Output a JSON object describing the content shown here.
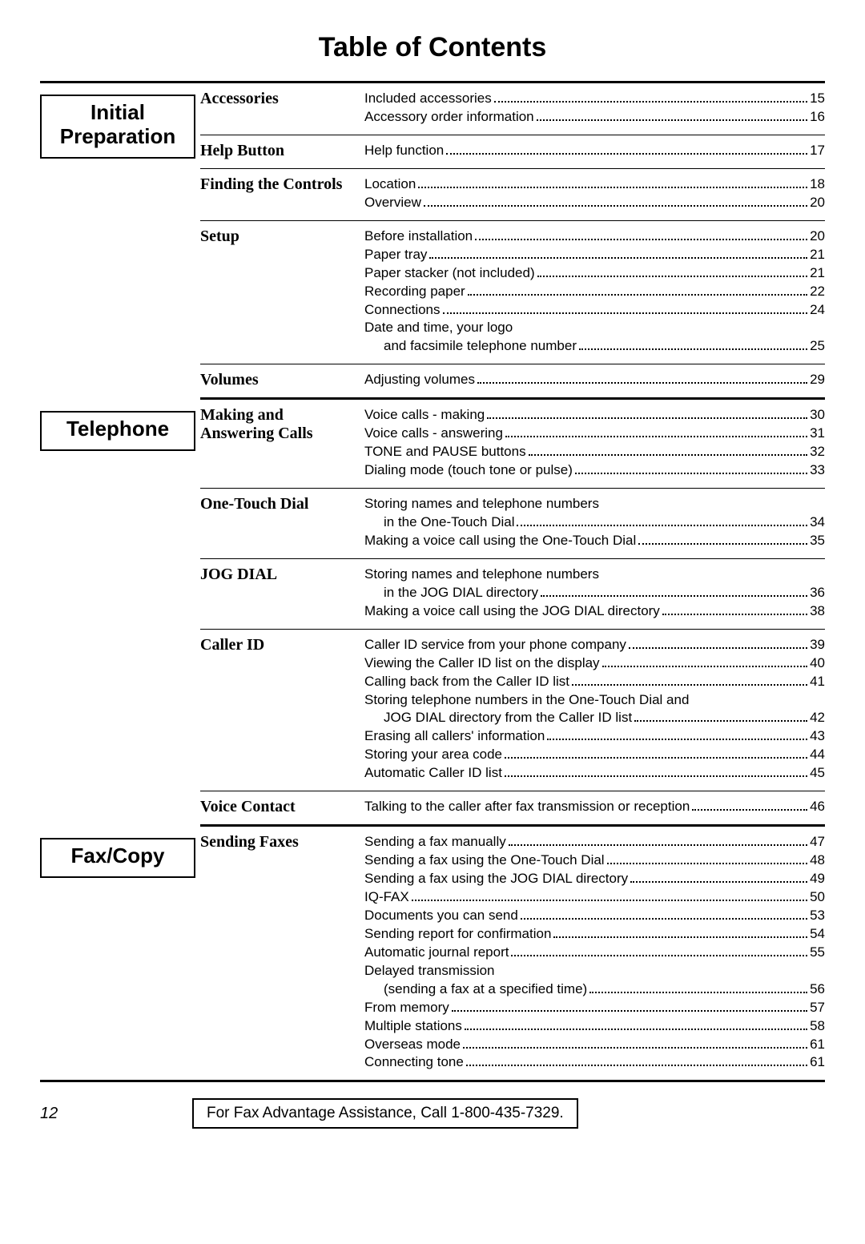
{
  "title": "Table of Contents",
  "page_number": "12",
  "footer": "For Fax Advantage Assistance, Call 1-800-435-7329.",
  "groups": [
    {
      "category": "Initial\nPreparation",
      "subsections": [
        {
          "heading": "Accessories",
          "entries": [
            {
              "label": "Included accessories",
              "page": "15"
            },
            {
              "label": "Accessory order information",
              "page": "16"
            }
          ]
        },
        {
          "heading": "Help Button",
          "entries": [
            {
              "label": "Help function",
              "page": "17"
            }
          ]
        },
        {
          "heading": "Finding the Controls",
          "entries": [
            {
              "label": "Location",
              "page": "18"
            },
            {
              "label": "Overview",
              "page": "20"
            }
          ]
        },
        {
          "heading": "Setup",
          "entries": [
            {
              "label": "Before installation",
              "page": "20"
            },
            {
              "label": "Paper tray",
              "page": "21"
            },
            {
              "label": "Paper stacker (not included)",
              "page": "21"
            },
            {
              "label": "Recording paper",
              "page": "22"
            },
            {
              "label": "Connections",
              "page": "24"
            },
            {
              "label": "Date and time, your logo",
              "intro": true
            },
            {
              "label": "and facsimile telephone number",
              "page": "25",
              "indent": true
            }
          ]
        },
        {
          "heading": "Volumes",
          "entries": [
            {
              "label": "Adjusting volumes",
              "page": "29"
            }
          ]
        }
      ]
    },
    {
      "category": "Telephone",
      "subsections": [
        {
          "heading": "Making and Answering Calls",
          "entries": [
            {
              "label": "Voice calls - making",
              "page": "30"
            },
            {
              "label": "Voice calls - answering",
              "page": "31"
            },
            {
              "label": "TONE and PAUSE buttons",
              "page": "32"
            },
            {
              "label": "Dialing mode (touch tone or pulse)",
              "page": "33"
            }
          ]
        },
        {
          "heading": "One-Touch Dial",
          "entries": [
            {
              "label": "Storing names and telephone numbers",
              "intro": true
            },
            {
              "label": "in the One-Touch Dial",
              "page": "34",
              "indent": true
            },
            {
              "label": "Making a voice call using the One-Touch Dial",
              "page": "35"
            }
          ]
        },
        {
          "heading": "JOG DIAL",
          "entries": [
            {
              "label": "Storing names and telephone numbers",
              "intro": true
            },
            {
              "label": "in the JOG DIAL directory",
              "page": "36",
              "indent": true
            },
            {
              "label": "Making a voice call using the JOG DIAL directory",
              "page": "38"
            }
          ]
        },
        {
          "heading": "Caller ID",
          "entries": [
            {
              "label": "Caller ID service from your phone company",
              "page": "39"
            },
            {
              "label": "Viewing the Caller ID list on the display",
              "page": "40"
            },
            {
              "label": "Calling back from the Caller ID list",
              "page": "41"
            },
            {
              "label": "Storing telephone numbers in the One-Touch Dial and",
              "intro": true
            },
            {
              "label": "JOG DIAL directory from the Caller ID list",
              "page": "42",
              "indent": true
            },
            {
              "label": "Erasing all callers' information",
              "page": "43"
            },
            {
              "label": "Storing your area code",
              "page": "44"
            },
            {
              "label": "Automatic Caller ID list",
              "page": "45"
            }
          ]
        },
        {
          "heading": "Voice Contact",
          "entries": [
            {
              "label": "Talking to the caller after fax transmission or reception",
              "page": "46"
            }
          ]
        }
      ]
    },
    {
      "category": "Fax/Copy",
      "subsections": [
        {
          "heading": "Sending Faxes",
          "entries": [
            {
              "label": "Sending a fax manually",
              "page": "47"
            },
            {
              "label": "Sending a fax using the One-Touch Dial",
              "page": "48"
            },
            {
              "label": "Sending a fax using the JOG DIAL directory",
              "page": "49"
            },
            {
              "label": "IQ-FAX",
              "page": "50"
            },
            {
              "label": "Documents you can send",
              "page": "53"
            },
            {
              "label": "Sending report for confirmation",
              "page": "54"
            },
            {
              "label": "Automatic journal report",
              "page": "55"
            },
            {
              "label": "Delayed transmission",
              "intro": true
            },
            {
              "label": "(sending a fax at a specified time)",
              "page": "56",
              "indent": true
            },
            {
              "label": "From memory",
              "page": "57"
            },
            {
              "label": "Multiple stations",
              "page": "58"
            },
            {
              "label": "Overseas mode",
              "page": "61"
            },
            {
              "label": "Connecting tone",
              "page": "61"
            }
          ]
        }
      ]
    }
  ]
}
